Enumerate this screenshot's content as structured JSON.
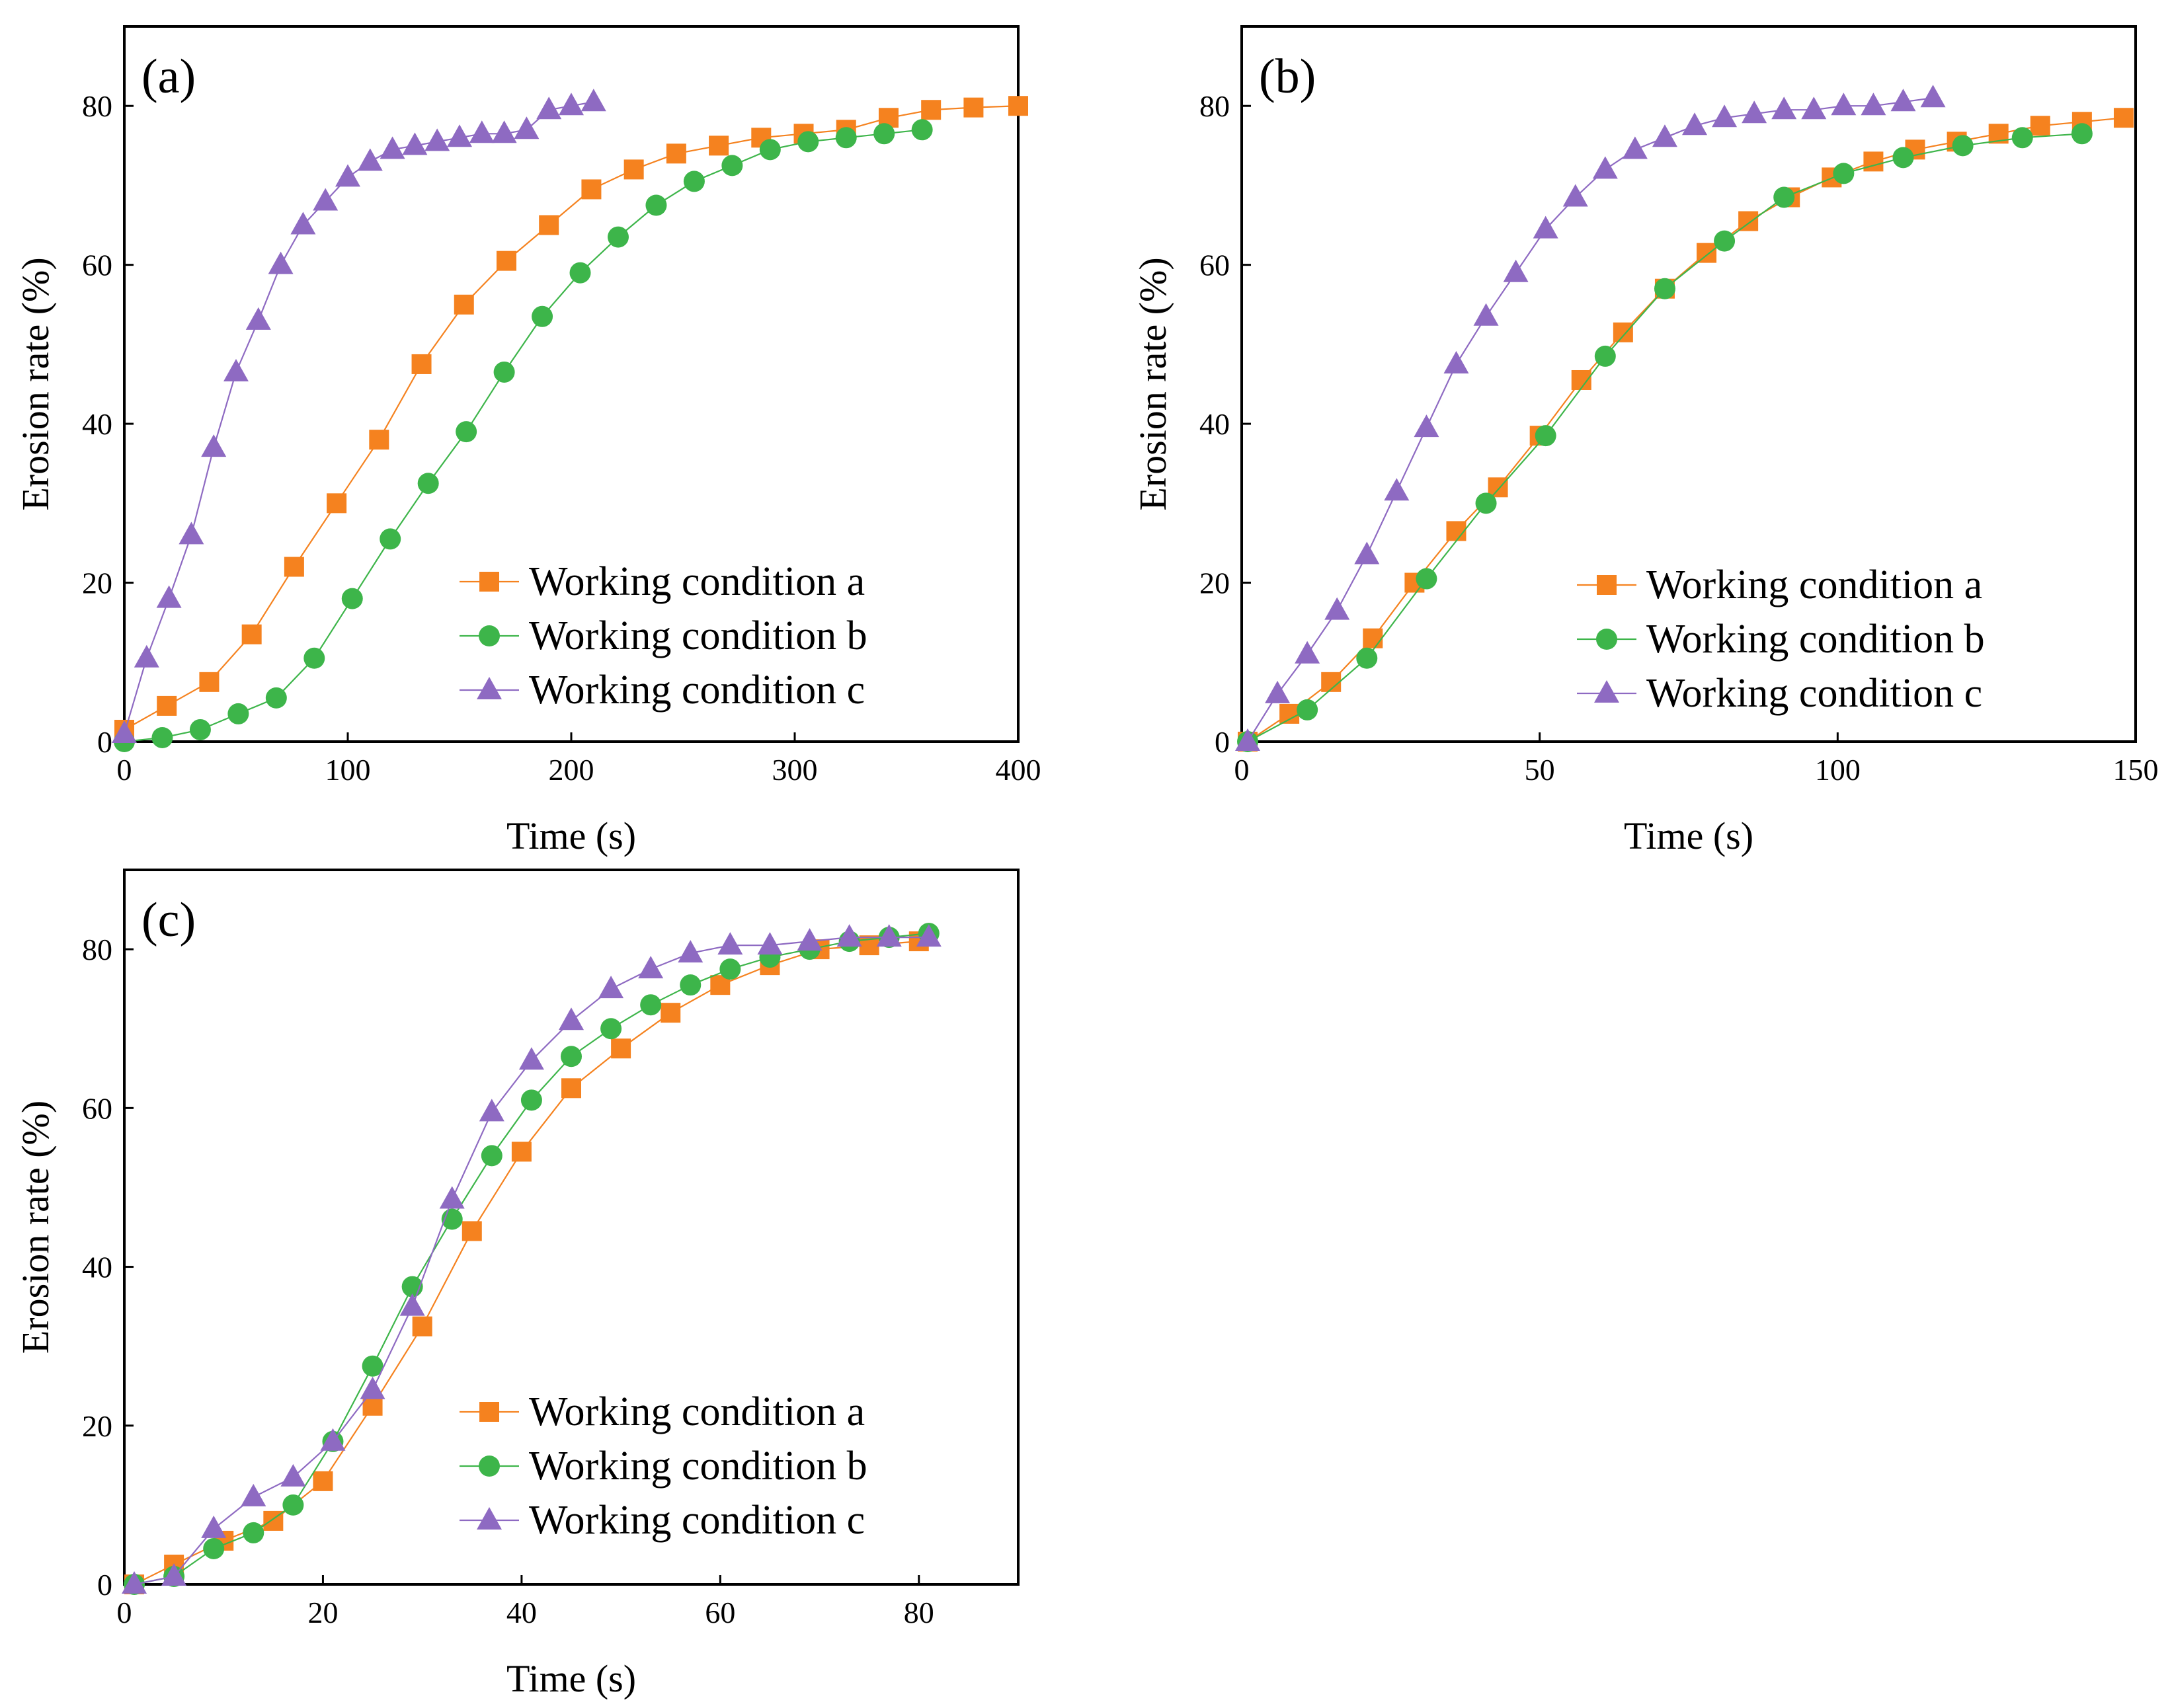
{
  "figure": {
    "background": "#ffffff"
  },
  "colors": {
    "a": "#F5821F",
    "b": "#3DB54A",
    "c": "#8E6AC2"
  },
  "chart_data": [
    {
      "type": "line",
      "panel": "(a)",
      "xlabel": "Time (s)",
      "ylabel": "Erosion rate (%)",
      "xlim": [
        0,
        400
      ],
      "ylim": [
        0,
        90
      ],
      "xticks": [
        0,
        100,
        200,
        300,
        400
      ],
      "yticks": [
        0,
        20,
        40,
        60,
        80
      ],
      "grid": false,
      "legend_position": "bottom-right",
      "series": [
        {
          "name": "Working condition a",
          "key": "a",
          "marker": "square",
          "x": [
            0,
            19,
            38,
            57,
            76,
            95,
            114,
            133,
            152,
            171,
            190,
            209,
            228,
            247,
            266,
            285,
            304,
            323,
            342,
            361,
            380,
            400
          ],
          "y": [
            1.5,
            4.5,
            7.5,
            13.5,
            22,
            30,
            38,
            47.5,
            55,
            60.5,
            65,
            69.5,
            72,
            74,
            75,
            76,
            76.5,
            77,
            78.5,
            79.5,
            79.8,
            80
          ]
        },
        {
          "name": "Working condition b",
          "key": "b",
          "marker": "circle",
          "x": [
            0,
            17,
            34,
            51,
            68,
            85,
            102,
            119,
            136,
            153,
            170,
            187,
            204,
            221,
            238,
            255,
            272,
            289,
            306,
            323,
            340,
            357
          ],
          "y": [
            0,
            0.5,
            1.5,
            3.5,
            5.5,
            10.5,
            18,
            25.5,
            32.5,
            39,
            46.5,
            53.5,
            59,
            63.5,
            67.5,
            70.5,
            72.5,
            74.5,
            75.5,
            76,
            76.5,
            77
          ]
        },
        {
          "name": "Working condition c",
          "key": "c",
          "marker": "triangle",
          "x": [
            0,
            10,
            20,
            30,
            40,
            50,
            60,
            70,
            80,
            90,
            100,
            110,
            120,
            130,
            140,
            150,
            160,
            170,
            180,
            190,
            200,
            210
          ],
          "y": [
            1,
            10.5,
            18,
            26,
            37,
            46.5,
            53,
            60,
            65,
            68,
            71,
            73,
            74.5,
            75,
            75.5,
            76,
            76.5,
            76.5,
            77,
            79.5,
            80,
            80.5
          ]
        }
      ]
    },
    {
      "type": "line",
      "panel": "(b)",
      "xlabel": "Time (s)",
      "ylabel": "Erosion rate (%)",
      "xlim": [
        0,
        150
      ],
      "ylim": [
        0,
        90
      ],
      "xticks": [
        0,
        50,
        100,
        150
      ],
      "yticks": [
        0,
        20,
        40,
        60,
        80
      ],
      "grid": false,
      "legend_position": "bottom-right",
      "series": [
        {
          "name": "Working condition a",
          "key": "a",
          "marker": "square",
          "x": [
            1,
            8,
            15,
            22,
            29,
            36,
            43,
            50,
            57,
            64,
            71,
            78,
            85,
            92,
            99,
            106,
            113,
            120,
            127,
            134,
            141,
            148
          ],
          "y": [
            0,
            3.5,
            7.5,
            13,
            20,
            26.5,
            32,
            38.5,
            45.5,
            51.5,
            57,
            61.5,
            65.5,
            68.5,
            71,
            73,
            74.5,
            75.5,
            76.5,
            77.5,
            78,
            78.5
          ]
        },
        {
          "name": "Working condition b",
          "key": "b",
          "marker": "circle",
          "x": [
            1,
            11,
            21,
            31,
            41,
            51,
            61,
            71,
            81,
            91,
            101,
            111,
            121,
            131,
            141
          ],
          "y": [
            0,
            4,
            10.5,
            20.5,
            30,
            38.5,
            48.5,
            57,
            63,
            68.5,
            71.5,
            73.5,
            75,
            76,
            76.5
          ]
        },
        {
          "name": "Working condition c",
          "key": "c",
          "marker": "triangle",
          "x": [
            1,
            6,
            11,
            16,
            21,
            26,
            31,
            36,
            41,
            46,
            51,
            56,
            61,
            66,
            71,
            76,
            81,
            86,
            91,
            96,
            101,
            106,
            111,
            116
          ],
          "y": [
            0,
            6,
            11,
            16.5,
            23.5,
            31.5,
            39.5,
            47.5,
            53.5,
            59,
            64.5,
            68.5,
            72,
            74.5,
            76,
            77.5,
            78.5,
            79,
            79.5,
            79.5,
            80,
            80,
            80.5,
            81
          ]
        }
      ]
    },
    {
      "type": "line",
      "panel": "(c)",
      "xlabel": "Time (s)",
      "ylabel": "Erosion rate (%)",
      "xlim": [
        0,
        90
      ],
      "ylim": [
        0,
        90
      ],
      "xticks": [
        0,
        20,
        40,
        60,
        80
      ],
      "yticks": [
        0,
        20,
        40,
        60,
        80
      ],
      "grid": false,
      "legend_position": "bottom-right",
      "series": [
        {
          "name": "Working condition a",
          "key": "a",
          "marker": "square",
          "x": [
            1,
            5,
            10,
            15,
            20,
            25,
            30,
            35,
            40,
            45,
            50,
            55,
            60,
            65,
            70,
            75,
            80
          ],
          "y": [
            0,
            2.5,
            5.5,
            8,
            13,
            22.5,
            32.5,
            44.5,
            54.5,
            62.5,
            67.5,
            72,
            75.5,
            78,
            80,
            80.5,
            81
          ]
        },
        {
          "name": "Working condition b",
          "key": "b",
          "marker": "circle",
          "x": [
            1,
            5,
            9,
            13,
            17,
            21,
            25,
            29,
            33,
            37,
            41,
            45,
            49,
            53,
            57,
            61,
            65,
            69,
            73,
            77,
            81
          ],
          "y": [
            0,
            1,
            4.5,
            6.5,
            10,
            18,
            27.5,
            37.5,
            46,
            54,
            61,
            66.5,
            70,
            73,
            75.5,
            77.5,
            79,
            80,
            81,
            81.5,
            82
          ]
        },
        {
          "name": "Working condition c",
          "key": "c",
          "marker": "triangle",
          "x": [
            1,
            5,
            9,
            13,
            17,
            21,
            25,
            29,
            33,
            37,
            41,
            45,
            49,
            53,
            57,
            61,
            65,
            69,
            73,
            77,
            81
          ],
          "y": [
            0,
            1,
            7,
            11,
            13.5,
            18,
            24.5,
            35,
            48.5,
            59.5,
            66,
            71,
            75,
            77.5,
            79.5,
            80.5,
            80.5,
            81,
            81.5,
            81.5,
            81.5
          ]
        }
      ]
    }
  ]
}
